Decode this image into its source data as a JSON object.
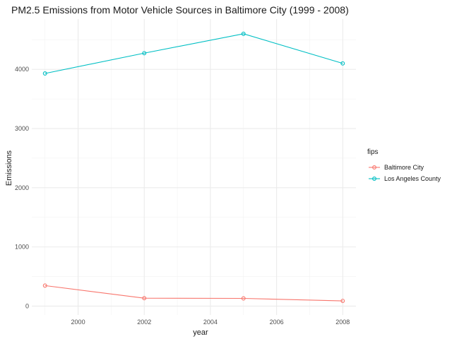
{
  "chart_data": {
    "type": "line",
    "title": "PM2.5 Emissions from Motor Vehicle Sources in Baltimore City (1999 - 2008)",
    "xlabel": "year",
    "ylabel": "Emissions",
    "x": [
      1999,
      2002,
      2005,
      2008
    ],
    "xlim": [
      1998.6,
      2008.4
    ],
    "ylim": [
      -150,
      4850
    ],
    "x_ticks": [
      2000,
      2002,
      2004,
      2006,
      2008
    ],
    "x_minor_ticks": [
      1999,
      2001,
      2003,
      2005,
      2007
    ],
    "y_ticks": [
      0,
      1000,
      2000,
      3000,
      4000
    ],
    "y_minor_ticks": [
      500,
      1500,
      2500,
      3500,
      4500
    ],
    "grid": true,
    "legend": {
      "title": "fips",
      "position": "right"
    },
    "series": [
      {
        "name": "Baltimore City",
        "color": "#F8766D",
        "values": [
          346.8,
          134.3,
          130.4,
          88.3
        ]
      },
      {
        "name": "Los Angeles County",
        "color": "#00BFC4",
        "values": [
          3931,
          4274,
          4601,
          4101
        ]
      }
    ]
  }
}
